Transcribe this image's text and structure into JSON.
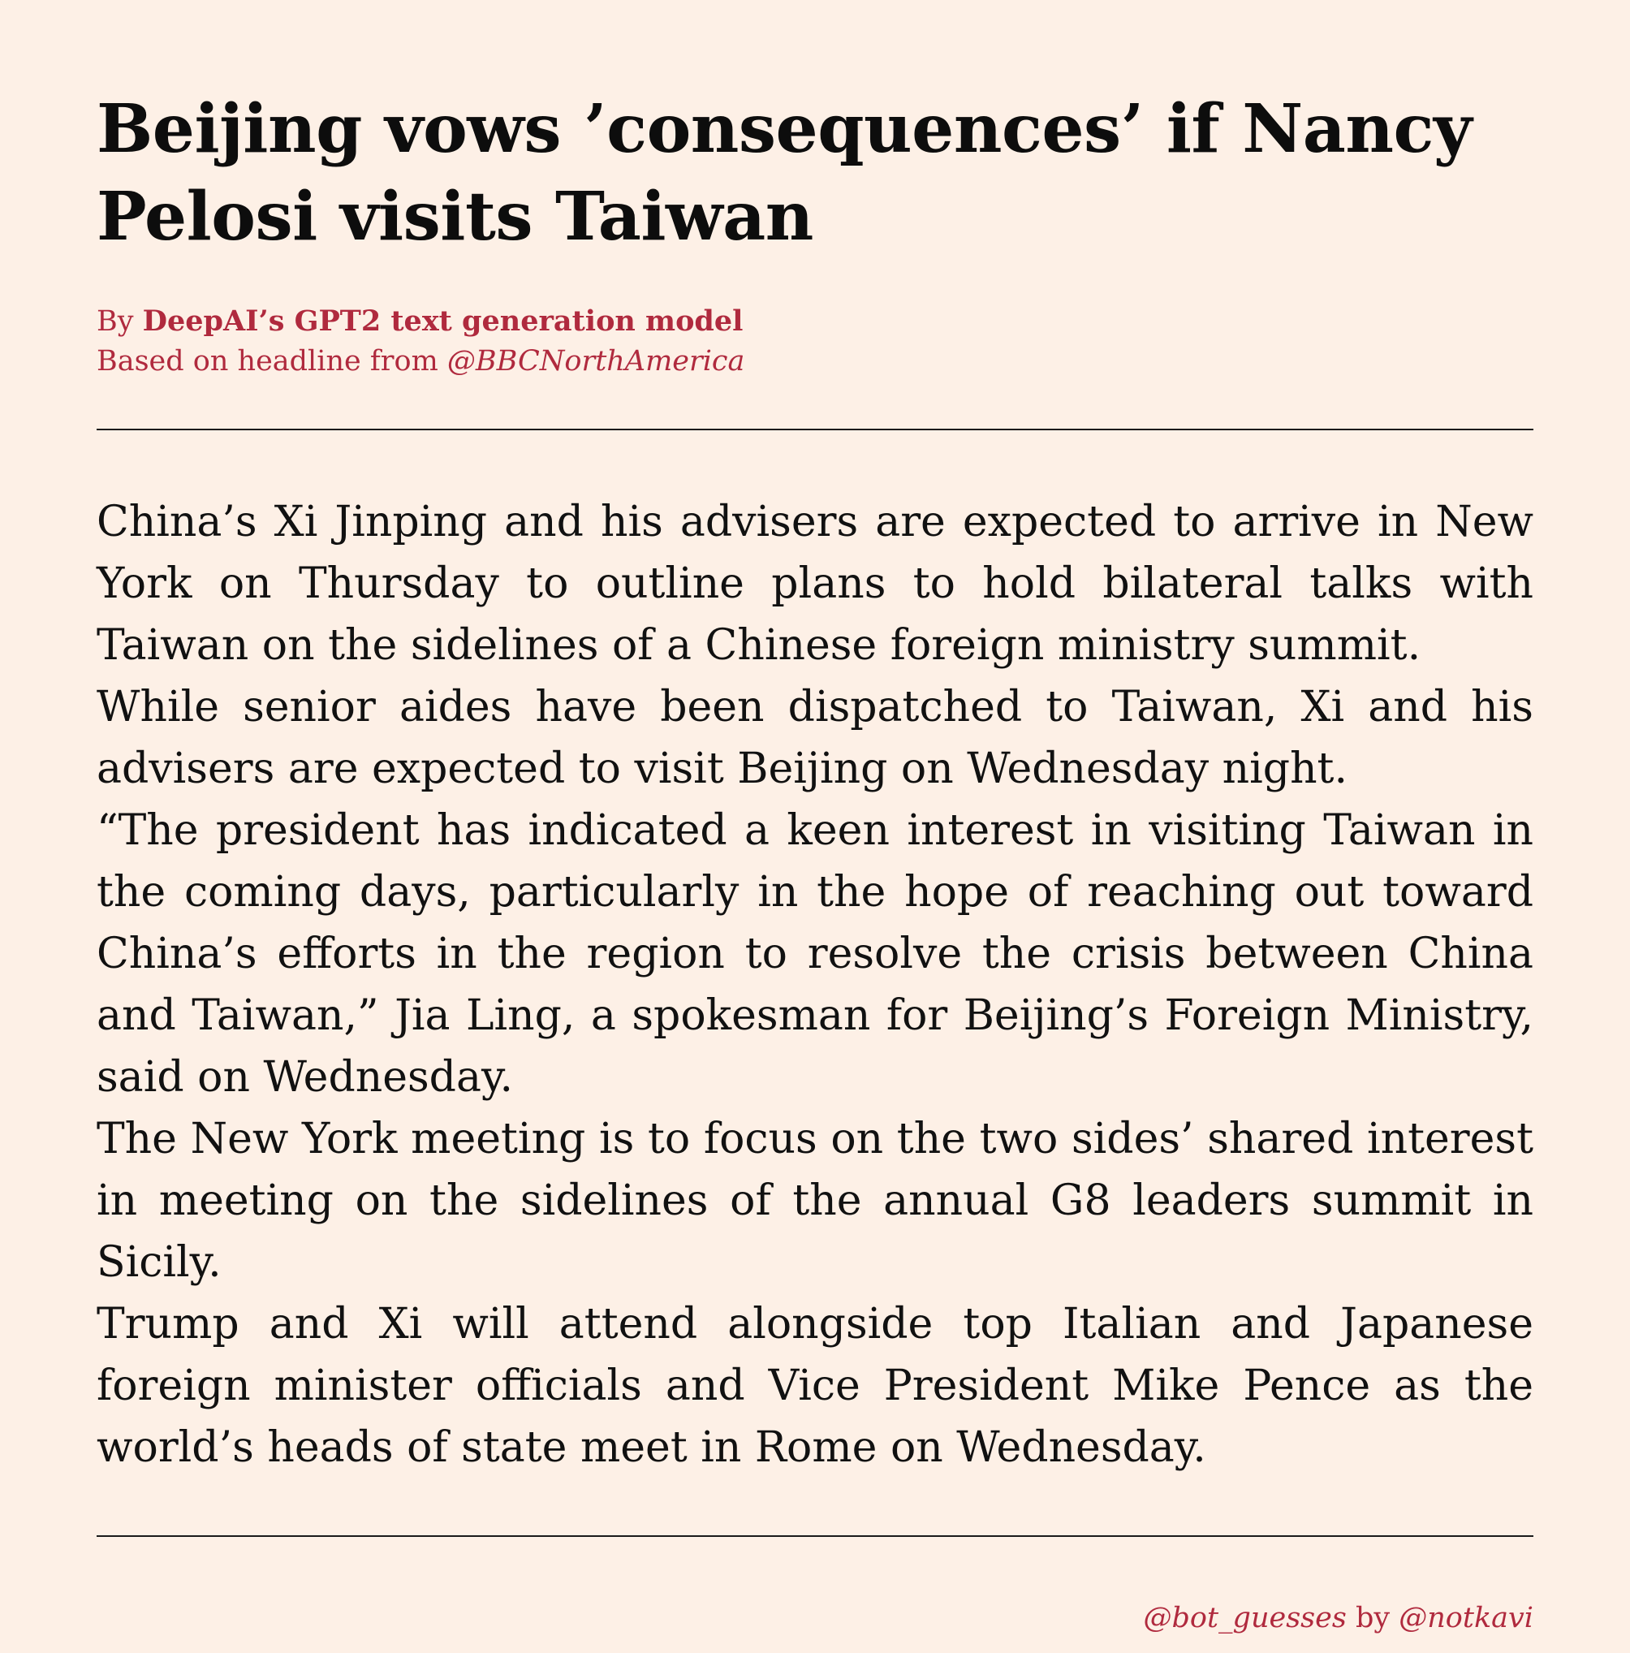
{
  "article": {
    "headline": "Beijing vows ’consequences’ if Nancy Pelosi visits Taiwan",
    "byline": {
      "prefix": "By ",
      "author": "DeepAI’s GPT2 text generation model",
      "source_prefix": "Based on headline from ",
      "source_handle": "@BBCNorthAmerica"
    },
    "paragraphs": [
      "China’s Xi Jinping and his advisers are expected to arrive in New York on Thursday to outline plans to hold bilateral talks with Taiwan on the sidelines of a Chinese foreign ministry summit.",
      "While senior aides have been dispatched to Taiwan, Xi and his advisers are expected to visit Beijing on Wednesday night.",
      "“The president has indicated a keen interest in visiting Taiwan in the coming days, particularly in the hope of reaching out toward China’s efforts in the region to resolve the crisis between China and Taiwan,” Jia Ling, a spokesman for Beijing’s Foreign Ministry, said on Wednesday.",
      "The New York meeting is to focus on the two sides’ shared interest in meeting on the sidelines of the annual G8 leaders summit in Sicily.",
      "Trump and Xi will attend alongside top Italian and Japanese foreign minister officials and Vice President Mike Pence as the world’s heads of state meet in Rome on Wednesday."
    ]
  },
  "credit": {
    "bot_handle": "@bot_guesses",
    "by_word": " by ",
    "author_handle": "@notkavi"
  },
  "colors": {
    "background": "#fdf0e6",
    "accent": "#b02a3e",
    "text": "#111111"
  }
}
